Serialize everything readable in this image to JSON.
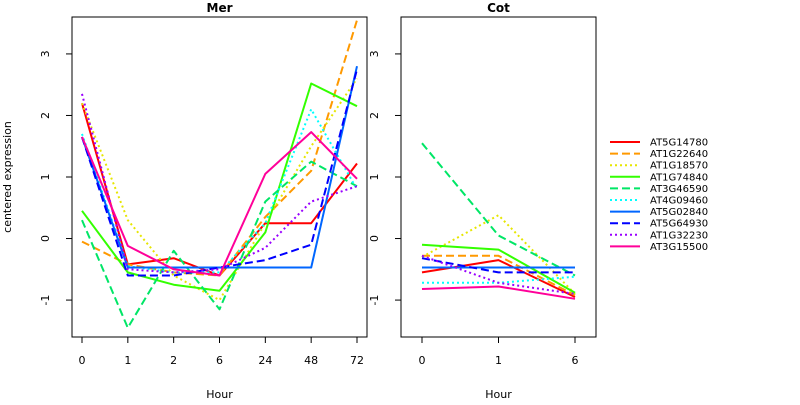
{
  "chart_data": [
    {
      "type": "line",
      "title": "Mer",
      "xlabel": "Hour",
      "ylabel": "centered expression",
      "categories": [
        "0",
        "1",
        "2",
        "6",
        "24",
        "48",
        "72"
      ],
      "ylim": [
        -1.6,
        3.6
      ],
      "yticks": [
        "-1",
        "0",
        "1",
        "2",
        "3"
      ],
      "series": [
        {
          "name": "AT5G14780",
          "color": "#ff0000",
          "dash": "solid",
          "values": [
            2.2,
            -0.42,
            -0.32,
            -0.6,
            0.25,
            0.25,
            1.22
          ]
        },
        {
          "name": "AT1G22640",
          "color": "#ff9900",
          "dash": "dashed",
          "values": [
            -0.05,
            -0.42,
            -0.55,
            -0.6,
            0.35,
            1.1,
            3.55
          ]
        },
        {
          "name": "AT1G18570",
          "color": "#e6e600",
          "dash": "dotted",
          "values": [
            2.2,
            0.3,
            -0.6,
            -1.0,
            0.25,
            1.5,
            2.6
          ]
        },
        {
          "name": "AT1G74840",
          "color": "#33ff00",
          "dash": "solid",
          "values": [
            0.45,
            -0.55,
            -0.75,
            -0.85,
            0.1,
            2.52,
            2.15
          ]
        },
        {
          "name": "AT3G46590",
          "color": "#00e666",
          "dash": "dashed",
          "values": [
            0.3,
            -1.45,
            -0.2,
            -1.15,
            0.6,
            1.25,
            0.85
          ]
        },
        {
          "name": "AT4G09460",
          "color": "#00ffff",
          "dash": "dotted",
          "values": [
            1.7,
            -0.45,
            -0.55,
            -0.55,
            0.25,
            2.1,
            0.8
          ]
        },
        {
          "name": "AT5G02840",
          "color": "#0066ff",
          "dash": "solid",
          "values": [
            1.65,
            -0.47,
            -0.47,
            -0.47,
            -0.47,
            -0.47,
            2.8
          ]
        },
        {
          "name": "AT5G64930",
          "color": "#0000ff",
          "dash": "dashed",
          "values": [
            1.65,
            -0.6,
            -0.6,
            -0.47,
            -0.35,
            -0.1,
            2.75
          ]
        },
        {
          "name": "AT1G32230",
          "color": "#9900ff",
          "dash": "dotted",
          "values": [
            2.35,
            -0.5,
            -0.55,
            -0.5,
            -0.15,
            0.6,
            0.85
          ]
        },
        {
          "name": "AT3G15500",
          "color": "#ff0099",
          "dash": "solid",
          "values": [
            1.65,
            -0.12,
            -0.5,
            -0.6,
            1.05,
            1.73,
            0.97
          ]
        }
      ]
    },
    {
      "type": "line",
      "title": "Cot",
      "xlabel": "Hour",
      "categories": [
        "0",
        "1",
        "6"
      ],
      "ylim": [
        -1.6,
        3.6
      ],
      "yticks": [
        "-1",
        "0",
        "1",
        "2",
        "3"
      ],
      "series": [
        {
          "name": "AT5G14780",
          "color": "#ff0000",
          "dash": "solid",
          "values": [
            -0.55,
            -0.35,
            -0.95
          ]
        },
        {
          "name": "AT1G22640",
          "color": "#ff9900",
          "dash": "dashed",
          "values": [
            -0.28,
            -0.28,
            -0.92
          ]
        },
        {
          "name": "AT1G18570",
          "color": "#e6e600",
          "dash": "dotted",
          "values": [
            -0.3,
            0.38,
            -0.9
          ]
        },
        {
          "name": "AT1G74840",
          "color": "#33ff00",
          "dash": "solid",
          "values": [
            -0.1,
            -0.18,
            -0.88
          ]
        },
        {
          "name": "AT3G46590",
          "color": "#00e666",
          "dash": "dashed",
          "values": [
            1.55,
            0.05,
            -0.6
          ]
        },
        {
          "name": "AT4G09460",
          "color": "#00ffff",
          "dash": "dotted",
          "values": [
            -0.72,
            -0.72,
            -0.62
          ]
        },
        {
          "name": "AT5G02840",
          "color": "#0066ff",
          "dash": "solid",
          "values": [
            -0.47,
            -0.47,
            -0.47
          ]
        },
        {
          "name": "AT5G64930",
          "color": "#0000ff",
          "dash": "dashed",
          "values": [
            -0.32,
            -0.55,
            -0.55
          ]
        },
        {
          "name": "AT1G32230",
          "color": "#9900ff",
          "dash": "dotted",
          "values": [
            -0.28,
            -0.72,
            -0.9
          ]
        },
        {
          "name": "AT3G15500",
          "color": "#ff0099",
          "dash": "solid",
          "values": [
            -0.82,
            -0.78,
            -0.98
          ]
        }
      ]
    }
  ],
  "legend": {
    "placement": "right",
    "items": [
      {
        "label": "AT5G14780",
        "color": "#ff0000",
        "dash": "solid"
      },
      {
        "label": "AT1G22640",
        "color": "#ff9900",
        "dash": "dashed"
      },
      {
        "label": "AT1G18570",
        "color": "#e6e600",
        "dash": "dotted"
      },
      {
        "label": "AT1G74840",
        "color": "#33ff00",
        "dash": "solid"
      },
      {
        "label": "AT3G46590",
        "color": "#00e666",
        "dash": "dashed"
      },
      {
        "label": "AT4G09460",
        "color": "#00ffff",
        "dash": "dotted"
      },
      {
        "label": "AT5G02840",
        "color": "#0066ff",
        "dash": "solid"
      },
      {
        "label": "AT5G64930",
        "color": "#0000ff",
        "dash": "dashed"
      },
      {
        "label": "AT1G32230",
        "color": "#9900ff",
        "dash": "dotted"
      },
      {
        "label": "AT3G15500",
        "color": "#ff0099",
        "dash": "solid"
      }
    ]
  }
}
